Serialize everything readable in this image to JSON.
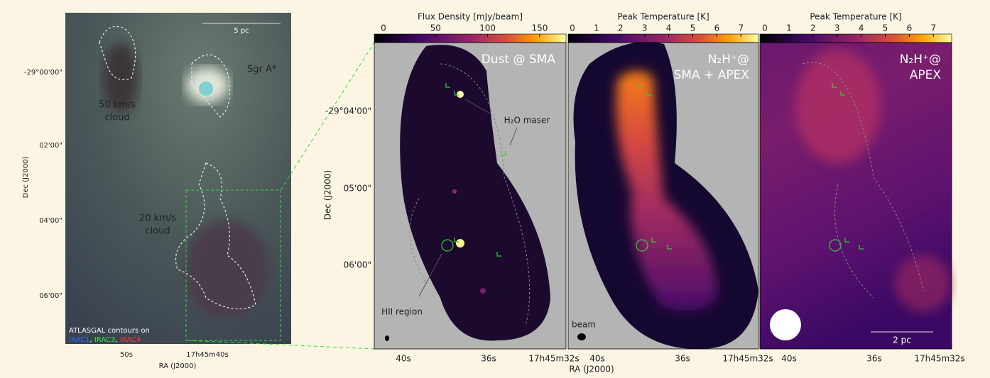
{
  "left_panel": {
    "scale_bar": "5 pc",
    "sources": [
      "Sgr A*",
      "50 km/s",
      "cloud",
      "20 km/s",
      "cloud"
    ],
    "legend": {
      "line": "ATLASGAL contours on",
      "bands": [
        "IRAC1",
        ", ",
        "IRAC3",
        ", ",
        "IRAC4"
      ]
    },
    "dec_ticks": [
      "-29°00'00\"",
      "02'00\"",
      "04'00\"",
      "06'00\""
    ],
    "ra_ticks": [
      "50s",
      "17h45m40s"
    ],
    "x_label": "RA (J2000)",
    "y_label": "Dec (J2000)"
  },
  "right_panels": {
    "colorbars": [
      {
        "title": "Flux Density  [mJy/beam]",
        "ticks": [
          "0",
          "50",
          "100",
          "150"
        ]
      },
      {
        "title": "Peak Temperature  [K]",
        "ticks": [
          "0",
          "1",
          "2",
          "3",
          "4",
          "5",
          "6",
          "7"
        ]
      },
      {
        "title": "Peak Temperature  [K]",
        "ticks": [
          "0",
          "1",
          "2",
          "3",
          "4",
          "5",
          "6",
          "7"
        ]
      }
    ],
    "labels": [
      [
        "Dust @ SMA"
      ],
      [
        "N₂H⁺@",
        "SMA + APEX"
      ],
      [
        "N₂H⁺@",
        "APEX"
      ]
    ],
    "annotations": {
      "maser": "H₂O maser",
      "hii": "HII region",
      "beam": "beam",
      "scale": "2 pc"
    },
    "dec_ticks": [
      "-29°04'00\"",
      "05'00\"",
      "06'00\""
    ],
    "ra_ticks": [
      "40s",
      "36s",
      "17h45m32s"
    ],
    "x_label": "RA (J2000)",
    "y_label": "Dec (J2000)"
  }
}
